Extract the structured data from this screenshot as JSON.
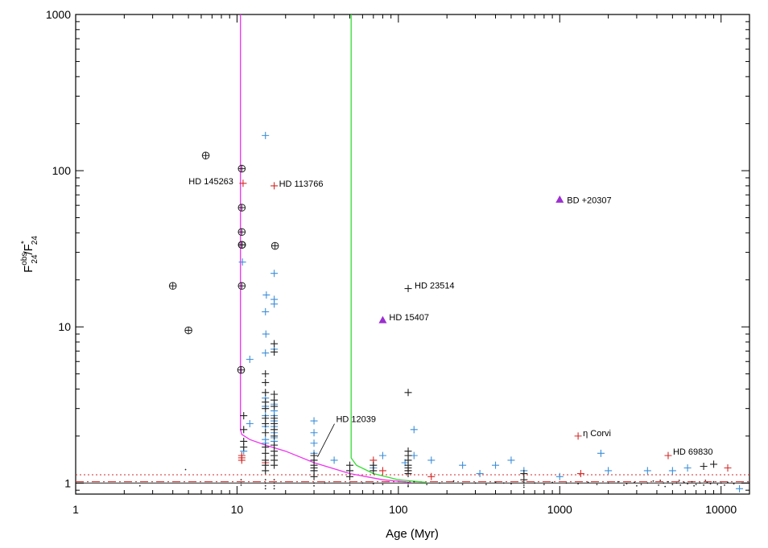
{
  "chart_data": {
    "type": "scatter",
    "xscale": "log",
    "yscale": "log",
    "xlim": [
      1,
      15000
    ],
    "ylim": [
      0.85,
      1000
    ],
    "xlabel": "Age (Myr)",
    "ylabel": "F^obs_24/F^*_24",
    "ylabel_parts": {
      "base1": "F",
      "sup1": "obs",
      "sub1": "24",
      "sep": "/",
      "base2": "F",
      "sup2": "*",
      "sub2": "24"
    },
    "xticks": [
      {
        "value": 1,
        "label": "1"
      },
      {
        "value": 10,
        "label": "10"
      },
      {
        "value": 100,
        "label": "100"
      },
      {
        "value": 1000,
        "label": "1000"
      },
      {
        "value": 10000,
        "label": "10000"
      }
    ],
    "yticks": [
      {
        "value": 1,
        "label": "1"
      },
      {
        "value": 10,
        "label": "10"
      },
      {
        "value": 100,
        "label": "100"
      },
      {
        "value": 1000,
        "label": "1000"
      }
    ],
    "colors": {
      "black": "#222222",
      "blue": "#3d8fd8",
      "red": "#d42a2a",
      "purple": "#9b2fd0",
      "magenta": "#ee33ee",
      "green": "#33dd33"
    },
    "reference_lines": [
      {
        "y": 1.0,
        "style": "solid",
        "color": "#222222"
      },
      {
        "y": 1.02,
        "style": "dashed",
        "color": "#d42a2a"
      },
      {
        "y": 1.13,
        "style": "dotted",
        "color": "#d42a2a"
      }
    ],
    "curves": [
      {
        "color": "#ee33ee",
        "points": [
          [
            10.5,
            1000
          ],
          [
            10.5,
            3
          ],
          [
            10.5,
            2.2
          ],
          [
            10.7,
            2.05
          ],
          [
            12,
            1.9
          ],
          [
            15,
            1.75
          ],
          [
            20,
            1.6
          ],
          [
            30,
            1.35
          ],
          [
            50,
            1.15
          ],
          [
            80,
            1.05
          ],
          [
            120,
            1.01
          ]
        ]
      },
      {
        "color": "#33dd33",
        "points": [
          [
            51,
            1000
          ],
          [
            51,
            2
          ],
          [
            51,
            1.45
          ],
          [
            55,
            1.3
          ],
          [
            70,
            1.15
          ],
          [
            100,
            1.05
          ],
          [
            150,
            1.01
          ]
        ]
      }
    ],
    "series": [
      {
        "marker": "circle-plus",
        "color": "#222222",
        "points": [
          [
            4.0,
            18.3
          ],
          [
            5.0,
            9.5
          ],
          [
            6.4,
            125
          ],
          [
            10.6,
            5.3
          ],
          [
            10.7,
            18.3
          ],
          [
            10.7,
            33.5
          ],
          [
            10.75,
            33.5
          ],
          [
            10.7,
            40.5
          ],
          [
            10.7,
            58
          ],
          [
            10.7,
            103
          ],
          [
            17.2,
            33
          ]
        ]
      },
      {
        "marker": "plus",
        "color": "#d42a2a",
        "points": [
          [
            10.9,
            83
          ],
          [
            17.0,
            80
          ],
          [
            10.7,
            1.5
          ],
          [
            10.7,
            1.45
          ],
          [
            10.7,
            1.4
          ],
          [
            15,
            1.35
          ],
          [
            70,
            1.4
          ],
          [
            70,
            1.25
          ],
          [
            80,
            1.2
          ],
          [
            115,
            1.2
          ],
          [
            160,
            1.1
          ],
          [
            1300,
            2.0
          ],
          [
            1350,
            1.15
          ],
          [
            4700,
            1.5
          ],
          [
            11000,
            1.25
          ]
        ]
      },
      {
        "marker": "plus",
        "color": "#3d8fd8",
        "points": [
          [
            15.0,
            168
          ],
          [
            10.8,
            26
          ],
          [
            17.0,
            22
          ],
          [
            17.0,
            15
          ],
          [
            17.0,
            14
          ],
          [
            15.2,
            16
          ],
          [
            15.0,
            12.5
          ],
          [
            15.1,
            9
          ],
          [
            15.0,
            6.8
          ],
          [
            17.0,
            7.2
          ],
          [
            12.0,
            6.2
          ],
          [
            17,
            3.2
          ],
          [
            17,
            2.9
          ],
          [
            17,
            2.7
          ],
          [
            17,
            2.5
          ],
          [
            17,
            2.3
          ],
          [
            17,
            2.1
          ],
          [
            17,
            1.95
          ],
          [
            17,
            1.85
          ],
          [
            15,
            3.5
          ],
          [
            15,
            3.1
          ],
          [
            15,
            2.7
          ],
          [
            15,
            2.3
          ],
          [
            15,
            1.9
          ],
          [
            15,
            1.8
          ],
          [
            12,
            2.4
          ],
          [
            11,
            1.6
          ],
          [
            30,
            2.5
          ],
          [
            30,
            2.1
          ],
          [
            30,
            1.8
          ],
          [
            30,
            1.55
          ],
          [
            30,
            1.4
          ],
          [
            30,
            1.2
          ],
          [
            40,
            1.4
          ],
          [
            50,
            1.2
          ],
          [
            70,
            1.25
          ],
          [
            80,
            1.5
          ],
          [
            110,
            1.35
          ],
          [
            125,
            2.2
          ],
          [
            125,
            1.5
          ],
          [
            160,
            1.4
          ],
          [
            250,
            1.3
          ],
          [
            320,
            1.15
          ],
          [
            400,
            1.3
          ],
          [
            500,
            1.4
          ],
          [
            600,
            1.2
          ],
          [
            1000,
            1.1
          ],
          [
            1800,
            1.55
          ],
          [
            2000,
            1.2
          ],
          [
            3500,
            1.2
          ],
          [
            5000,
            1.2
          ],
          [
            6200,
            1.25
          ],
          [
            13000,
            0.92
          ]
        ]
      },
      {
        "marker": "plus",
        "color": "#222222",
        "points": [
          [
            11,
            2.7
          ],
          [
            11,
            2.2
          ],
          [
            11,
            1.85
          ],
          [
            11,
            1.7
          ],
          [
            15,
            5
          ],
          [
            15,
            4.4
          ],
          [
            15,
            3.8
          ],
          [
            15,
            3.3
          ],
          [
            15,
            3
          ],
          [
            15,
            2.6
          ],
          [
            15,
            2.4
          ],
          [
            15,
            2.1
          ],
          [
            15,
            1.7
          ],
          [
            15,
            1.55
          ],
          [
            15,
            1.4
          ],
          [
            15,
            1.3
          ],
          [
            15,
            1.2
          ],
          [
            17,
            7.8
          ],
          [
            17,
            6.9
          ],
          [
            17,
            3.7
          ],
          [
            17,
            3.4
          ],
          [
            17,
            3.1
          ],
          [
            17,
            2.6
          ],
          [
            17,
            2.4
          ],
          [
            17,
            2.2
          ],
          [
            17,
            2.0
          ],
          [
            17,
            1.75
          ],
          [
            17,
            1.6
          ],
          [
            17,
            1.5
          ],
          [
            17,
            1.4
          ],
          [
            17,
            1.3
          ],
          [
            30,
            1.5
          ],
          [
            30,
            1.4
          ],
          [
            30,
            1.3
          ],
          [
            30,
            1.25
          ],
          [
            30,
            1.2
          ],
          [
            30,
            1.1
          ],
          [
            50,
            1.3
          ],
          [
            50,
            1.2
          ],
          [
            50,
            1.1
          ],
          [
            70,
            1.3
          ],
          [
            70,
            1.2
          ],
          [
            115,
            17.6
          ],
          [
            115,
            3.8
          ],
          [
            115,
            1.6
          ],
          [
            115,
            1.5
          ],
          [
            115,
            1.4
          ],
          [
            115,
            1.3
          ],
          [
            115,
            1.25
          ],
          [
            115,
            1.2
          ],
          [
            115,
            1.15
          ],
          [
            600,
            1.15
          ],
          [
            600,
            1.05
          ],
          [
            7800,
            1.28
          ],
          [
            9000,
            1.32
          ]
        ]
      },
      {
        "marker": "triangle",
        "color": "#9b2fd0",
        "points": [
          [
            80,
            11
          ],
          [
            1000,
            65
          ]
        ]
      },
      {
        "marker": "dot",
        "color": "#222222",
        "points": [
          [
            2.5,
            0.96
          ],
          [
            4.8,
            1.22
          ],
          [
            10.6,
            1.05
          ],
          [
            10.6,
            1.0
          ],
          [
            10.6,
            0.97
          ],
          [
            15,
            1.05
          ],
          [
            15,
            1.0
          ],
          [
            15,
            0.96
          ],
          [
            15,
            0.92
          ],
          [
            17,
            1.05
          ],
          [
            17,
            1.0
          ],
          [
            17,
            0.96
          ],
          [
            17,
            0.92
          ],
          [
            30,
            1.0
          ],
          [
            30,
            0.96
          ],
          [
            35,
            1.0
          ],
          [
            50,
            1.0
          ],
          [
            50,
            0.97
          ],
          [
            60,
            1.0
          ],
          [
            70,
            0.99
          ],
          [
            80,
            0.98
          ],
          [
            115,
            1.0
          ],
          [
            115,
            0.97
          ],
          [
            115,
            0.95
          ],
          [
            125,
            1.02
          ],
          [
            150,
            0.98
          ],
          [
            180,
            1.0
          ],
          [
            220,
            1.03
          ],
          [
            250,
            0.98
          ],
          [
            300,
            1.0
          ],
          [
            350,
            0.98
          ],
          [
            400,
            1.01
          ],
          [
            450,
            1.0
          ],
          [
            500,
            0.99
          ],
          [
            600,
            1.0
          ],
          [
            600,
            0.97
          ],
          [
            600,
            0.94
          ],
          [
            700,
            1.0
          ],
          [
            800,
            0.98
          ],
          [
            900,
            1.01
          ],
          [
            1100,
            1.0
          ],
          [
            1300,
            0.99
          ],
          [
            1500,
            1.01
          ],
          [
            1700,
            0.98
          ],
          [
            2000,
            1.0
          ],
          [
            2300,
            1.02
          ],
          [
            2600,
            0.99
          ],
          [
            2900,
            1.01
          ],
          [
            3200,
            0.98
          ],
          [
            3500,
            1.0
          ],
          [
            3800,
            1.03
          ],
          [
            4100,
            0.97
          ],
          [
            4400,
            1.0
          ],
          [
            4700,
            1.02
          ],
          [
            5000,
            0.98
          ],
          [
            5300,
            1.0
          ],
          [
            5600,
            0.97
          ],
          [
            5900,
            1.01
          ],
          [
            6200,
            0.99
          ],
          [
            6600,
            1.02
          ],
          [
            7000,
            0.98
          ],
          [
            7400,
            1.0
          ],
          [
            7800,
            0.97
          ],
          [
            8200,
            1.01
          ],
          [
            8600,
            0.99
          ],
          [
            9000,
            1.02
          ],
          [
            9500,
            0.98
          ],
          [
            10000,
            1.0
          ],
          [
            10500,
            0.97
          ],
          [
            11000,
            1.01
          ],
          [
            12000,
            0.99
          ],
          [
            3000,
            0.96
          ],
          [
            4500,
            0.95
          ],
          [
            5500,
            1.04
          ],
          [
            8000,
            1.04
          ],
          [
            6800,
            0.96
          ],
          [
            2500,
            0.97
          ],
          [
            4200,
            1.04
          ]
        ]
      }
    ],
    "annotations": [
      {
        "text": "HD 145263",
        "x": 10.9,
        "y": 83,
        "anchor": "end",
        "dx": -12,
        "dy": -3
      },
      {
        "text": "HD 113766",
        "x": 17.0,
        "y": 80,
        "anchor": "start",
        "dx": 6,
        "dy": -3
      },
      {
        "text": "BD +20307",
        "x": 1000,
        "y": 65,
        "anchor": "start",
        "dx": 9,
        "dy": 0
      },
      {
        "text": "HD 23514",
        "x": 115,
        "y": 17.6,
        "anchor": "start",
        "dx": 8,
        "dy": -4
      },
      {
        "text": "HD 15407",
        "x": 80,
        "y": 11,
        "anchor": "start",
        "dx": 8,
        "dy": -4
      },
      {
        "text": "HD 12039",
        "x": 30.5,
        "y": 1.42,
        "anchor": "start",
        "dx": 26,
        "dy": -50,
        "leader": true
      },
      {
        "text": "η Corvi",
        "x": 1300,
        "y": 2.0,
        "anchor": "start",
        "dx": 6,
        "dy": -4
      },
      {
        "text": "HD 69830",
        "x": 4700,
        "y": 1.5,
        "anchor": "start",
        "dx": 6,
        "dy": -5
      }
    ]
  }
}
